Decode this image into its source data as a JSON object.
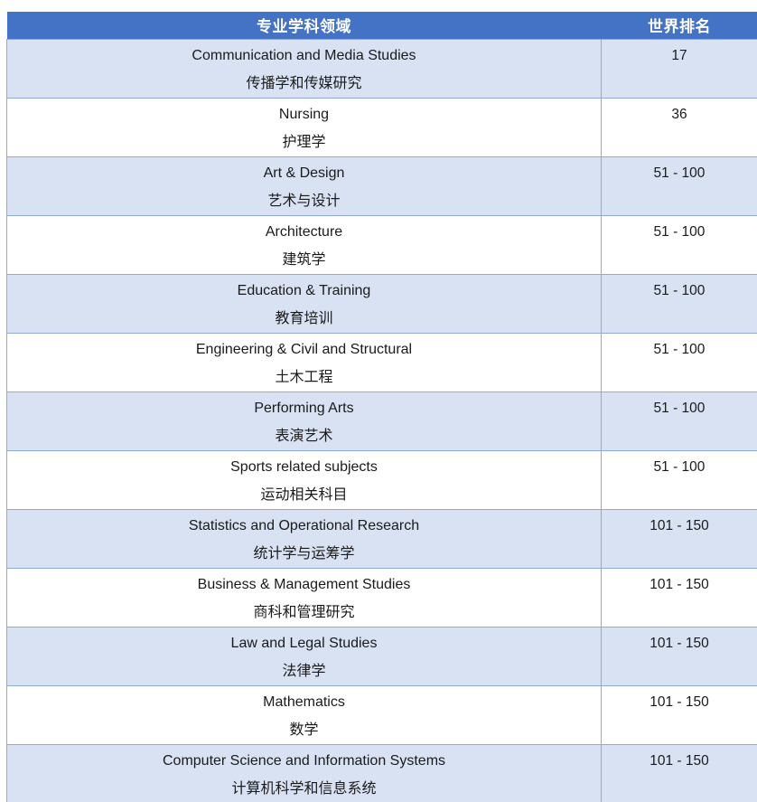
{
  "table": {
    "columns": [
      {
        "label": "专业学科领域"
      },
      {
        "label": "世界排名"
      }
    ],
    "rows": [
      {
        "subject_en": "Communication and Media Studies",
        "subject_zh": "传播学和传媒研究",
        "ranking": "17"
      },
      {
        "subject_en": "Nursing",
        "subject_zh": "护理学",
        "ranking": "36"
      },
      {
        "subject_en": "Art & Design",
        "subject_zh": "艺术与设计",
        "ranking": "51 - 100"
      },
      {
        "subject_en": "Architecture",
        "subject_zh": "建筑学",
        "ranking": "51 - 100"
      },
      {
        "subject_en": "Education & Training",
        "subject_zh": "教育培训",
        "ranking": "51 - 100"
      },
      {
        "subject_en": "Engineering & Civil and Structural",
        "subject_zh": "土木工程",
        "ranking": "51 - 100"
      },
      {
        "subject_en": "Performing Arts",
        "subject_zh": "表演艺术",
        "ranking": "51 - 100"
      },
      {
        "subject_en": "Sports related subjects",
        "subject_zh": "运动相关科目",
        "ranking": "51 - 100"
      },
      {
        "subject_en": "Statistics and Operational Research",
        "subject_zh": "统计学与运筹学",
        "ranking": "101 - 150"
      },
      {
        "subject_en": "Business & Management Studies",
        "subject_zh": "商科和管理研究",
        "ranking": "101 - 150"
      },
      {
        "subject_en": "Law and Legal Studies",
        "subject_zh": "法律学",
        "ranking": "101 - 150"
      },
      {
        "subject_en": "Mathematics",
        "subject_zh": "数学",
        "ranking": "101 - 150"
      },
      {
        "subject_en": "Computer Science and Information Systems",
        "subject_zh": "计算机科学和信息系统",
        "ranking": "101 - 150"
      }
    ],
    "colors": {
      "header_bg": "#4472C4",
      "header_text": "#FFFFFF",
      "banded_row_bg": "#D9E2F3",
      "plain_row_bg": "#FFFFFF",
      "border": "#8EAADB",
      "body_text": "#1A1A1A"
    }
  }
}
